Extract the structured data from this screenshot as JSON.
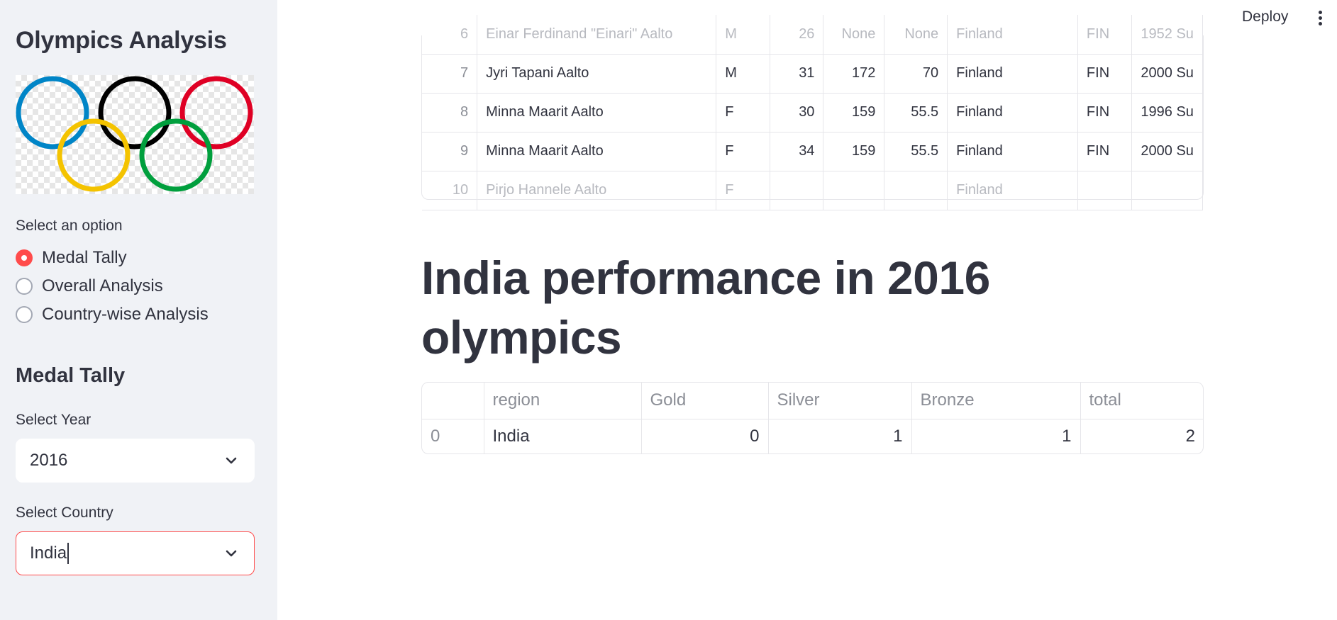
{
  "sidebar": {
    "title": "Olympics Analysis",
    "logo_icon": "olympic-rings-image",
    "option_label": "Select an option",
    "options": [
      {
        "label": "Medal Tally",
        "selected": true
      },
      {
        "label": "Overall Analysis",
        "selected": false
      },
      {
        "label": "Country-wise Analysis",
        "selected": false
      }
    ],
    "section_title": "Medal Tally",
    "year_label": "Select Year",
    "year_value": "2016",
    "country_label": "Select Country",
    "country_value": "India"
  },
  "header": {
    "deploy_label": "Deploy",
    "menu_icon": "more-vertical-icon"
  },
  "athletes_table": {
    "rows": [
      {
        "index": "6",
        "name": "Einar Ferdinand \"Einari\" Aalto",
        "sex": "M",
        "age": "26",
        "height": "None",
        "weight": "None",
        "team": "Finland",
        "noc": "FIN",
        "games": "1952 Su"
      },
      {
        "index": "7",
        "name": "Jyri Tapani Aalto",
        "sex": "M",
        "age": "31",
        "height": "172",
        "weight": "70",
        "team": "Finland",
        "noc": "FIN",
        "games": "2000 Su"
      },
      {
        "index": "8",
        "name": "Minna Maarit Aalto",
        "sex": "F",
        "age": "30",
        "height": "159",
        "weight": "55.5",
        "team": "Finland",
        "noc": "FIN",
        "games": "1996 Su"
      },
      {
        "index": "9",
        "name": "Minna Maarit Aalto",
        "sex": "F",
        "age": "34",
        "height": "159",
        "weight": "55.5",
        "team": "Finland",
        "noc": "FIN",
        "games": "2000 Su"
      },
      {
        "index": "10",
        "name": "Pirjo Hannele Aalto",
        "sex": "F",
        "age": "",
        "height": "",
        "weight": "",
        "team": "Finland",
        "noc": "",
        "games": ""
      }
    ]
  },
  "main": {
    "heading": "India performance in 2016 olympics"
  },
  "medal_table": {
    "headers": [
      "",
      "region",
      "Gold",
      "Silver",
      "Bronze",
      "total"
    ],
    "rows": [
      {
        "index": "0",
        "region": "India",
        "gold": "0",
        "silver": "1",
        "bronze": "1",
        "total": "2"
      }
    ]
  },
  "colors": {
    "accent": "#ff4b4b",
    "sidebar_bg": "#f0f2f6",
    "text": "#31333f",
    "ring_blue": "#0085c7",
    "ring_black": "#000000",
    "ring_red": "#df0024",
    "ring_yellow": "#f4c300",
    "ring_green": "#009f3d"
  }
}
